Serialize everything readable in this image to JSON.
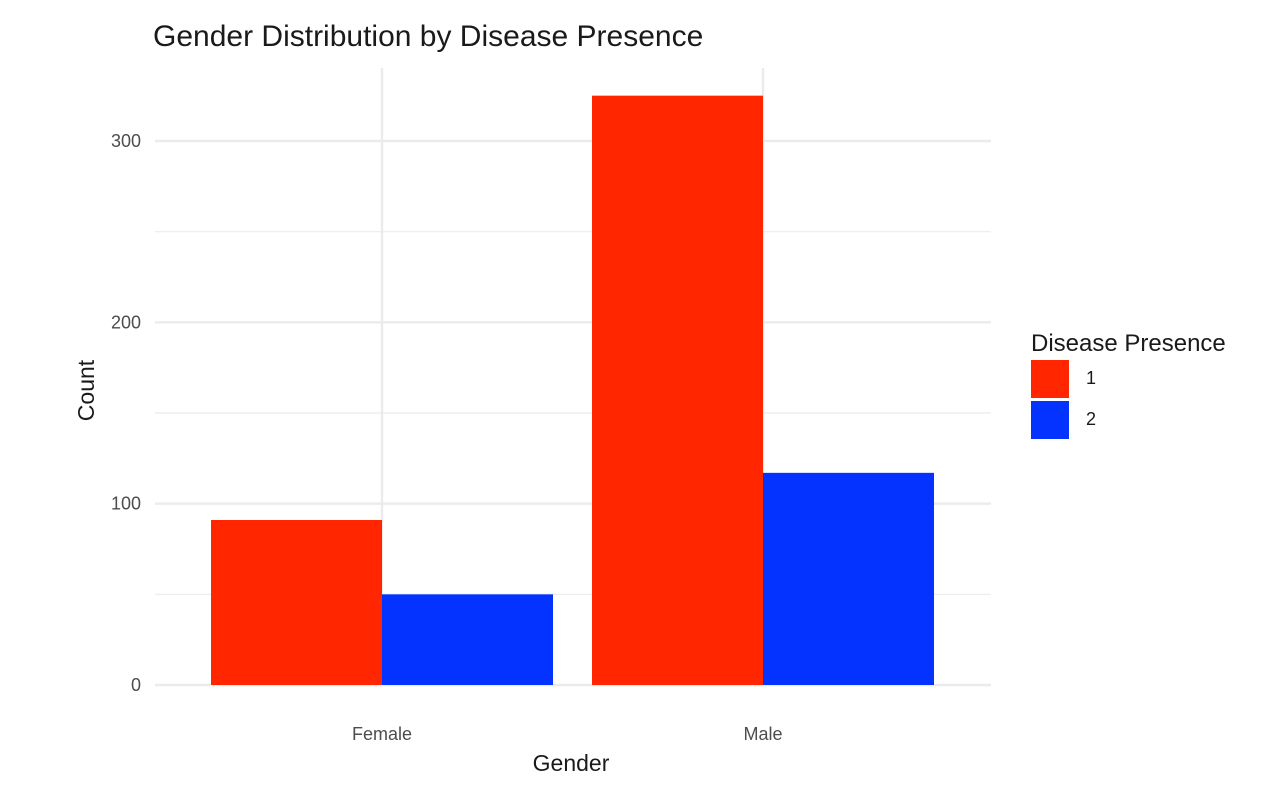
{
  "chart_data": {
    "type": "bar",
    "title": "Gender Distribution by Disease Presence",
    "xlabel": "Gender",
    "ylabel": "Count",
    "categories": [
      "Female",
      "Male"
    ],
    "series": [
      {
        "name": "1",
        "values": [
          91,
          325
        ],
        "color": "#ff2600"
      },
      {
        "name": "2",
        "values": [
          50,
          117
        ],
        "color": "#0433ff"
      }
    ],
    "ylim": [
      0,
      325
    ],
    "yticks": [
      0,
      100,
      200,
      300
    ],
    "grid": true,
    "legend": {
      "title": "Disease Presence",
      "position": "right"
    }
  }
}
